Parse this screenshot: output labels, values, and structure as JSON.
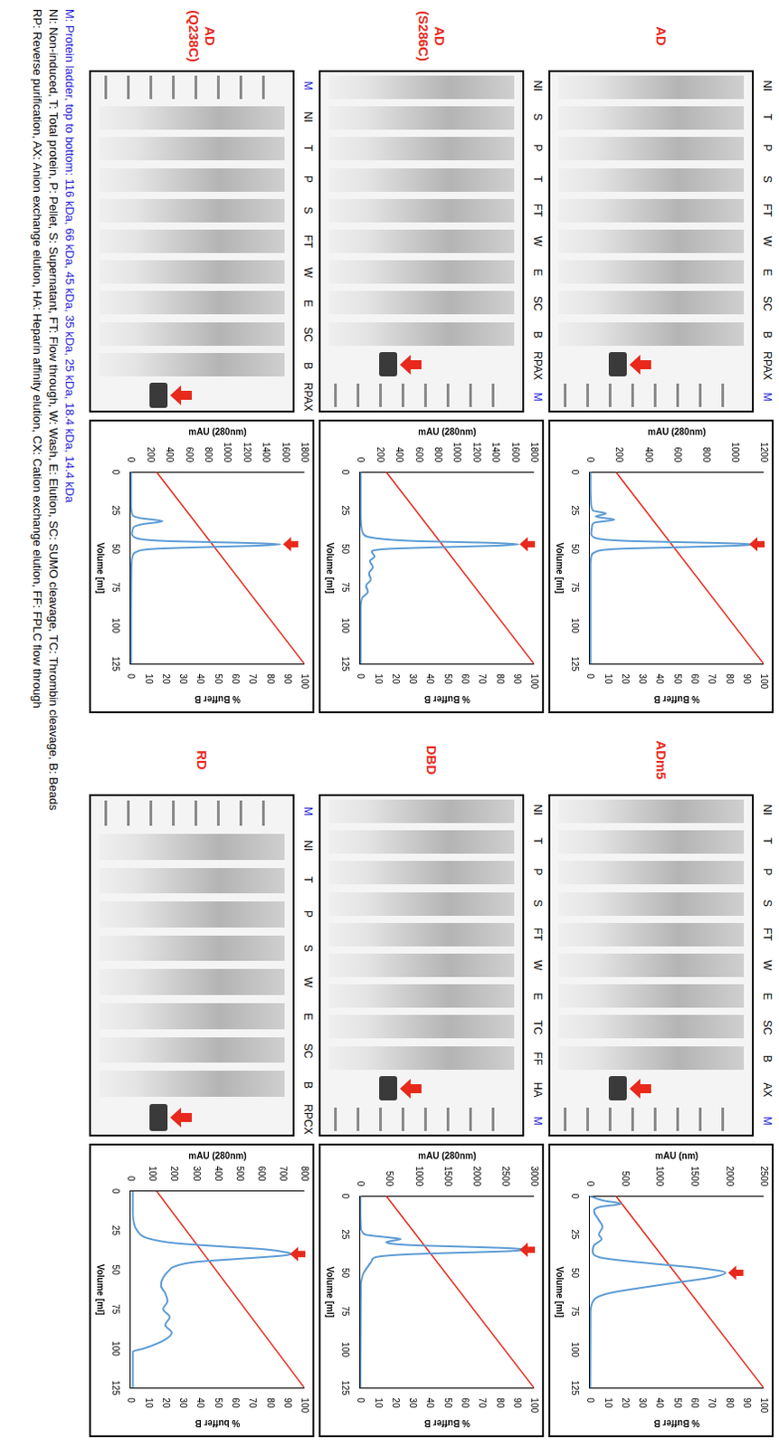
{
  "panels": [
    {
      "label": "AD",
      "lanes": [
        "NI",
        "T",
        "P",
        "S",
        "FT",
        "W",
        "E",
        "SC",
        "B",
        "RPAX",
        "M"
      ],
      "marked_lane": "RPAX"
    },
    {
      "label": "AD (S286C)",
      "lanes": [
        "NI",
        "S",
        "P",
        "T",
        "FT",
        "W",
        "E",
        "SC",
        "B",
        "RPAX",
        "M"
      ],
      "marked_lane": "RPAX"
    },
    {
      "label": "AD (Q238C)",
      "lanes": [
        "M",
        "NI",
        "T",
        "P",
        "S",
        "FT",
        "W",
        "E",
        "SC",
        "B",
        "RPAX"
      ],
      "marked_lane": "RPAX"
    },
    {
      "label": "ADm5",
      "lanes": [
        "NI",
        "T",
        "P",
        "S",
        "FT",
        "W",
        "E",
        "SC",
        "B",
        "AX",
        "M"
      ],
      "marked_lane": "AX"
    },
    {
      "label": "DBD",
      "lanes": [
        "NI",
        "T",
        "P",
        "S",
        "FT",
        "W",
        "E",
        "TC",
        "FF",
        "HA",
        "M"
      ],
      "marked_lane": "HA"
    },
    {
      "label": "RD",
      "lanes": [
        "M",
        "NI",
        "T",
        "P",
        "S",
        "W",
        "E",
        "SC",
        "B",
        "RPCX"
      ],
      "marked_lane": "RPCX"
    }
  ],
  "ladder_lane": "M",
  "key": {
    "ladder": "M: Protein ladder, top to bottom: 116 kDa, 66 kDa, 45 kDa, 35 kDa, 25 kDa, 18.4 kDa, 14.4 kDa",
    "abbreviations": [
      "NI: Non-induced, T: Total protein, P: Pellet, S: Supernatant, FT: Flow through, W: Wash, E: Elution, SC: SUMO cleavage, TC: Thrombin cleavage, B: Beads",
      "RP: Reverse purification, AX: Anion exchange elution, HA: Heparin affinity elution, CX: Cation exchange elution, FF: FPLC flow through"
    ]
  },
  "chart_data": [
    {
      "type": "line",
      "x_label": "Volume [ml]",
      "y_label": "mAU (280nm)",
      "y2_label": "% Buffer B",
      "xlim": [
        0,
        125
      ],
      "xticks": [
        0,
        25,
        50,
        75,
        100,
        125
      ],
      "ylim": [
        0,
        1200
      ],
      "yticks": [
        0,
        200,
        400,
        600,
        800,
        1000,
        1200
      ],
      "y2lim": [
        0,
        100
      ],
      "y2ticks": [
        0,
        10,
        20,
        30,
        40,
        50,
        60,
        70,
        80,
        90,
        100
      ],
      "grid": false,
      "series": [
        {
          "color": "#5b9bd5",
          "x": [
            0,
            10,
            20,
            25,
            27,
            29,
            31,
            33,
            35,
            40,
            43,
            45,
            46,
            47,
            48,
            49,
            50,
            52,
            55,
            60,
            70,
            80,
            100,
            125
          ],
          "values": [
            5,
            5,
            8,
            20,
            110,
            40,
            170,
            30,
            15,
            10,
            40,
            300,
            800,
            1130,
            1000,
            600,
            200,
            40,
            10,
            5,
            5,
            5,
            5,
            5
          ]
        },
        {
          "color": "#e8291c",
          "axis": "y2",
          "x": [
            0,
            125
          ],
          "values": [
            15,
            100
          ]
        }
      ]
    },
    {
      "type": "line",
      "x_label": "Volume [ml]",
      "y_label": "mAU (280nm)",
      "y2_label": "% Buffer B",
      "xlim": [
        0,
        125
      ],
      "xticks": [
        0,
        25,
        50,
        75,
        100,
        125
      ],
      "ylim": [
        0,
        1800
      ],
      "yticks": [
        0,
        200,
        400,
        600,
        800,
        1000,
        1200,
        1400,
        1600,
        1800
      ],
      "y2lim": [
        0,
        100
      ],
      "y2ticks": [
        0,
        10,
        20,
        30,
        40,
        50,
        60,
        70,
        80,
        90,
        100
      ],
      "grid": false,
      "series": [
        {
          "color": "#5b9bd5",
          "x": [
            0,
            20,
            30,
            35,
            40,
            43,
            45,
            46,
            47,
            48,
            49,
            50,
            52,
            55,
            58,
            62,
            66,
            70,
            74,
            78,
            82,
            90,
            125
          ],
          "values": [
            5,
            5,
            5,
            10,
            30,
            150,
            600,
            1300,
            1640,
            1400,
            800,
            300,
            120,
            150,
            100,
            130,
            90,
            110,
            60,
            80,
            20,
            5,
            5
          ]
        },
        {
          "color": "#e8291c",
          "axis": "y2",
          "x": [
            0,
            125
          ],
          "values": [
            15,
            100
          ]
        }
      ]
    },
    {
      "type": "line",
      "x_label": "Volume [ml]",
      "y_label": "mAU (280nm)",
      "y2_label": "% Buffer B",
      "xlim": [
        0,
        125
      ],
      "xticks": [
        0,
        25,
        50,
        75,
        100,
        125
      ],
      "ylim": [
        0,
        1800
      ],
      "yticks": [
        0,
        200,
        400,
        600,
        800,
        1000,
        1200,
        1400,
        1600,
        1800
      ],
      "y2lim": [
        0,
        100
      ],
      "y2ticks": [
        0,
        10,
        20,
        30,
        40,
        50,
        60,
        70,
        80,
        90,
        100
      ],
      "grid": false,
      "series": [
        {
          "color": "#5b9bd5",
          "x": [
            0,
            20,
            28,
            30,
            32,
            34,
            36,
            40,
            43,
            45,
            46,
            47,
            48,
            49,
            50,
            52,
            55,
            60,
            125
          ],
          "values": [
            5,
            5,
            20,
            100,
            330,
            120,
            30,
            15,
            60,
            400,
            1100,
            1550,
            1300,
            700,
            250,
            60,
            20,
            10,
            5
          ]
        },
        {
          "color": "#e8291c",
          "axis": "y2",
          "x": [
            0,
            125
          ],
          "values": [
            15,
            100
          ]
        }
      ]
    },
    {
      "type": "line",
      "x_label": "Volume [ml]",
      "y_label": "mAU (nm)",
      "y2_label": "% Buffer B",
      "xlim": [
        0,
        125
      ],
      "xticks": [
        0,
        25,
        50,
        75,
        100,
        125
      ],
      "ylim": [
        0,
        2500
      ],
      "yticks": [
        0,
        500,
        1000,
        1500,
        2000,
        2500
      ],
      "y2lim": [
        0,
        100
      ],
      "y2ticks": [
        0,
        10,
        20,
        30,
        40,
        50,
        60,
        70,
        80,
        90,
        100
      ],
      "grid": false,
      "series": [
        {
          "color": "#5b9bd5",
          "x": [
            0,
            3,
            5,
            7,
            10,
            15,
            20,
            25,
            28,
            32,
            36,
            40,
            44,
            47,
            50,
            53,
            56,
            60,
            63,
            66,
            70,
            75,
            125
          ],
          "values": [
            0,
            200,
            450,
            150,
            60,
            120,
            180,
            130,
            170,
            60,
            40,
            150,
            900,
            1600,
            1950,
            1750,
            1300,
            700,
            300,
            100,
            30,
            10,
            5
          ]
        },
        {
          "color": "#e8291c",
          "axis": "y2",
          "x": [
            0,
            125
          ],
          "values": [
            15,
            100
          ]
        }
      ]
    },
    {
      "type": "line",
      "x_label": "Volume [ml]",
      "y_label": "mAU (280nm)",
      "y2_label": "% Buffer B",
      "xlim": [
        0,
        125
      ],
      "xticks": [
        0,
        25,
        50,
        75,
        100,
        125
      ],
      "ylim": [
        0,
        3000
      ],
      "yticks": [
        0,
        500,
        1000,
        1500,
        2000,
        2500,
        3000
      ],
      "y2lim": [
        0,
        100
      ],
      "y2ticks": [
        0,
        10,
        20,
        30,
        40,
        50,
        60,
        70,
        80,
        90,
        100
      ],
      "grid": false,
      "series": [
        {
          "color": "#5b9bd5",
          "x": [
            0,
            10,
            20,
            25,
            27,
            28,
            30,
            32,
            33,
            34,
            35,
            36,
            37,
            38,
            40,
            42,
            45,
            50,
            55,
            60,
            125
          ],
          "values": [
            5,
            5,
            10,
            80,
            500,
            700,
            450,
            900,
            1800,
            2600,
            2850,
            2500,
            1600,
            800,
            250,
            200,
            150,
            60,
            20,
            10,
            5
          ]
        },
        {
          "color": "#e8291c",
          "axis": "y2",
          "x": [
            0,
            125
          ],
          "values": [
            15,
            100
          ]
        }
      ]
    },
    {
      "type": "line",
      "x_label": "Volume [ml]",
      "y_label": "mAU (280nm)",
      "y2_label": "% buffer B",
      "xlim": [
        0,
        125
      ],
      "xticks": [
        0,
        25,
        50,
        75,
        100,
        125
      ],
      "ylim": [
        0,
        800
      ],
      "yticks": [
        0,
        100,
        200,
        300,
        400,
        500,
        600,
        700,
        800
      ],
      "y2lim": [
        0,
        100
      ],
      "y2ticks": [
        0,
        10,
        20,
        30,
        40,
        50,
        60,
        70,
        80,
        90,
        100
      ],
      "grid": false,
      "series": [
        {
          "color": "#5b9bd5",
          "x": [
            0,
            10,
            20,
            25,
            30,
            33,
            35,
            37,
            39,
            40,
            41,
            43,
            45,
            48,
            50,
            55,
            60,
            65,
            70,
            75,
            80,
            85,
            90,
            95,
            100,
            102,
            125
          ],
          "values": [
            10,
            10,
            15,
            30,
            80,
            200,
            400,
            620,
            720,
            740,
            700,
            500,
            300,
            200,
            180,
            150,
            140,
            160,
            170,
            150,
            180,
            160,
            190,
            150,
            60,
            10,
            10
          ]
        },
        {
          "color": "#e8291c",
          "axis": "y2",
          "x": [
            0,
            125
          ],
          "values": [
            15,
            100
          ]
        }
      ]
    }
  ]
}
